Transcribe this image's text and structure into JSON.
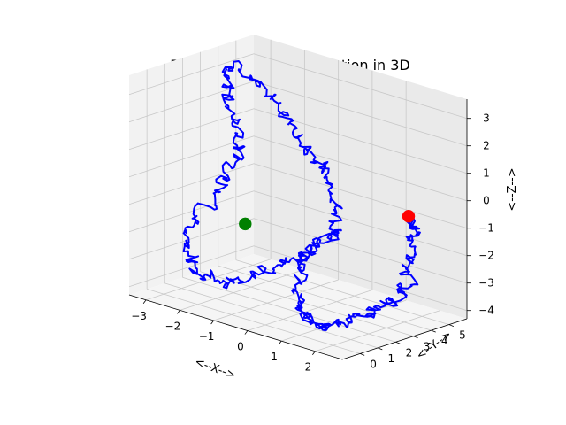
{
  "chart_data": {
    "type": "line3d",
    "title": "Brownian motion simulation in 3D",
    "xlabel": "<--X-->",
    "ylabel": "<--Y-->",
    "zlabel": "<--Z-->",
    "xlim": [
      -3.5,
      2.8
    ],
    "ylim": [
      -1,
      6
    ],
    "zlim": [
      -4.3,
      3.7
    ],
    "x_ticks": [
      -3,
      -2,
      -1,
      0,
      1,
      2
    ],
    "y_ticks": [
      0,
      1,
      2,
      3,
      4,
      5
    ],
    "z_ticks": [
      -4,
      -3,
      -2,
      -1,
      0,
      1,
      2,
      3
    ],
    "x_tick_labels": [
      "−3",
      "−2",
      "−1",
      "0",
      "1",
      "2"
    ],
    "y_tick_labels": [
      "0",
      "1",
      "2",
      "3",
      "4",
      "5"
    ],
    "z_tick_labels": [
      "−4",
      "−3",
      "−2",
      "−1",
      "0",
      "1",
      "2",
      "3"
    ],
    "grid": true,
    "series": [
      {
        "type": "path",
        "color": "#0000ff",
        "waypoints": [
          [
            0.4,
            3.5,
            -1.45
          ],
          [
            -0.1,
            2.8,
            -2.2
          ],
          [
            -0.8,
            2.0,
            -3.0
          ],
          [
            -1.6,
            1.2,
            -3.6
          ],
          [
            -2.4,
            0.6,
            -3.4
          ],
          [
            -2.6,
            0.4,
            -2.0
          ],
          [
            -2.2,
            1.4,
            -0.6
          ],
          [
            -1.9,
            2.2,
            0.8
          ],
          [
            -2.6,
            2.8,
            2.2
          ],
          [
            -2.9,
            3.6,
            3.4
          ],
          [
            -1.8,
            4.0,
            2.4
          ],
          [
            -1.1,
            4.2,
            1.0
          ],
          [
            -0.4,
            4.2,
            0.1
          ],
          [
            0.2,
            3.6,
            -1.2
          ],
          [
            -0.1,
            2.4,
            -2.5
          ],
          [
            0.1,
            1.6,
            -3.4
          ],
          [
            0.6,
            1.1,
            -4.1
          ],
          [
            1.4,
            0.8,
            -4.0
          ],
          [
            2.0,
            1.6,
            -3.6
          ],
          [
            2.4,
            2.6,
            -3.1
          ],
          [
            2.4,
            3.4,
            -2.7
          ],
          [
            2.2,
            4.0,
            -1.6
          ],
          [
            2.0,
            4.6,
            -1.0
          ],
          [
            1.6,
            5.0,
            -0.8
          ]
        ]
      }
    ],
    "markers": [
      {
        "name": "start",
        "color": "#008000",
        "point": [
          -1.7,
          2.1,
          -1.7
        ]
      },
      {
        "name": "end",
        "color": "#ff0000",
        "point": [
          1.6,
          5.0,
          -0.8
        ]
      }
    ]
  }
}
